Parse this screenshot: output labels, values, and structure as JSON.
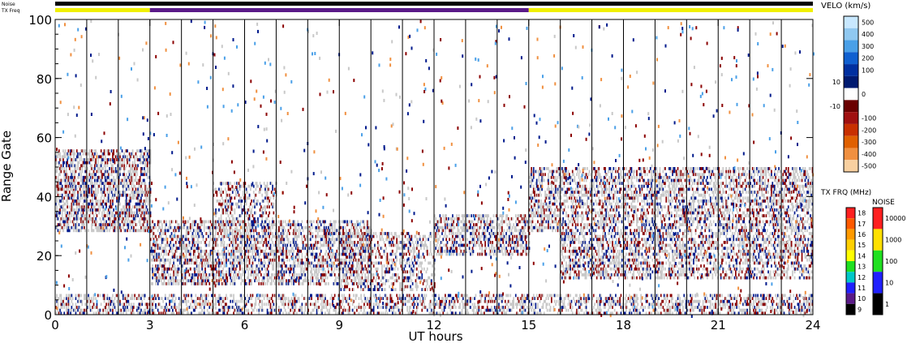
{
  "header": {
    "noise_label": "Noise",
    "txfreq_label": "TX Freq"
  },
  "chart_data": {
    "type": "heatmap",
    "xlabel": "UT hours",
    "ylabel": "Range Gate",
    "xlim": [
      0,
      24
    ],
    "ylim": [
      0,
      100
    ],
    "x_ticks": [
      "0",
      "3",
      "6",
      "9",
      "12",
      "15",
      "18",
      "21",
      "24"
    ],
    "y_ticks": [
      "0",
      "20",
      "40",
      "60",
      "80",
      "100"
    ],
    "vertical_marker_hours": [
      1,
      2,
      3,
      4,
      5,
      6,
      7,
      8,
      9,
      10,
      11,
      12,
      13,
      14,
      15,
      16,
      17,
      18,
      19,
      20,
      21,
      22,
      23
    ],
    "colors": {
      "ground_scatter": "#c8c8c8",
      "toward": "#001a8c",
      "away": "#8b0000",
      "txfreq_band_a": "#f0f000",
      "txfreq_band_b": "#5a1a88",
      "noise_bar": "#000000"
    },
    "txfreq_segments": [
      {
        "start": 0,
        "end": 3,
        "band": "a"
      },
      {
        "start": 3,
        "end": 15,
        "band": "b"
      },
      {
        "start": 15,
        "end": 24,
        "band": "a"
      }
    ],
    "regions": [
      {
        "x0": 0,
        "x1": 3,
        "y0": 28,
        "y1": 56,
        "density": 0.55
      },
      {
        "x0": 3,
        "x1": 7.2,
        "y0": 10,
        "y1": 32,
        "density": 0.5
      },
      {
        "x0": 5,
        "x1": 7,
        "y0": 30,
        "y1": 45,
        "density": 0.35
      },
      {
        "x0": 7,
        "x1": 10,
        "y0": 10,
        "y1": 32,
        "density": 0.45
      },
      {
        "x0": 9,
        "x1": 12,
        "y0": 8,
        "y1": 28,
        "density": 0.35
      },
      {
        "x0": 12,
        "x1": 15,
        "y0": 20,
        "y1": 34,
        "density": 0.45
      },
      {
        "x0": 15,
        "x1": 24,
        "y0": 28,
        "y1": 50,
        "density": 0.45
      },
      {
        "x0": 16,
        "x1": 24,
        "y0": 12,
        "y1": 28,
        "density": 0.45
      },
      {
        "x0": 0,
        "x1": 24,
        "y0": 0,
        "y1": 7,
        "density": 0.4
      }
    ],
    "velocity_scale": {
      "title": "VELO (km/s)",
      "labels": [
        "500",
        "400",
        "300",
        "200",
        "100",
        "10",
        "0",
        "-10",
        "-100",
        "-200",
        "-300",
        "-400",
        "-500"
      ],
      "colors": [
        "#c8e8ff",
        "#90c8f0",
        "#4aa0e8",
        "#1060d0",
        "#0030a0",
        "#001a70",
        "#ffffff",
        "#6a0000",
        "#a01010",
        "#c83000",
        "#e06000",
        "#f09040",
        "#f8d0a0"
      ]
    },
    "txfreq_scale": {
      "title": "TX FRQ (MHz)",
      "labels": [
        "18",
        "17",
        "16",
        "15",
        "14",
        "13",
        "12",
        "11",
        "10",
        "9"
      ],
      "colors": [
        "#ff2020",
        "#ff5a00",
        "#ff9a00",
        "#ffd000",
        "#ffff00",
        "#20e020",
        "#00c8c8",
        "#2020ff",
        "#5a1a88",
        "#000000"
      ]
    },
    "noise_scale": {
      "title": "NOISE",
      "labels": [
        "10000",
        "1000",
        "100",
        "10",
        "1"
      ],
      "colors": [
        "#ff2020",
        "#ffe000",
        "#20e020",
        "#2020ff",
        "#000000"
      ]
    }
  }
}
